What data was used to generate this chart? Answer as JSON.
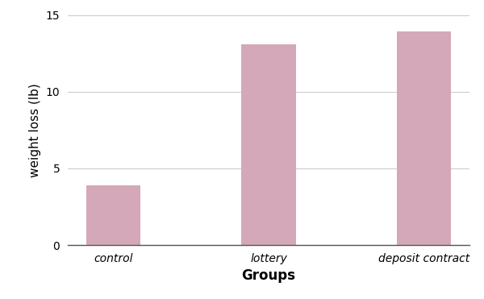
{
  "categories": [
    "control",
    "lottery",
    "deposit contract"
  ],
  "values": [
    3.9,
    13.1,
    13.9
  ],
  "bar_color": "#d4a8b8",
  "bar_edgecolor": "none",
  "title": "",
  "xlabel": "Groups",
  "ylabel": "weight loss (lb)",
  "ylim": [
    0,
    15
  ],
  "yticks": [
    0,
    5,
    10,
    15
  ],
  "xlabel_fontsize": 12,
  "ylabel_fontsize": 11,
  "tick_label_fontsize": 10,
  "background_color": "#ffffff",
  "grid_color": "#cccccc",
  "grid_linewidth": 0.8,
  "bar_width": 0.35
}
